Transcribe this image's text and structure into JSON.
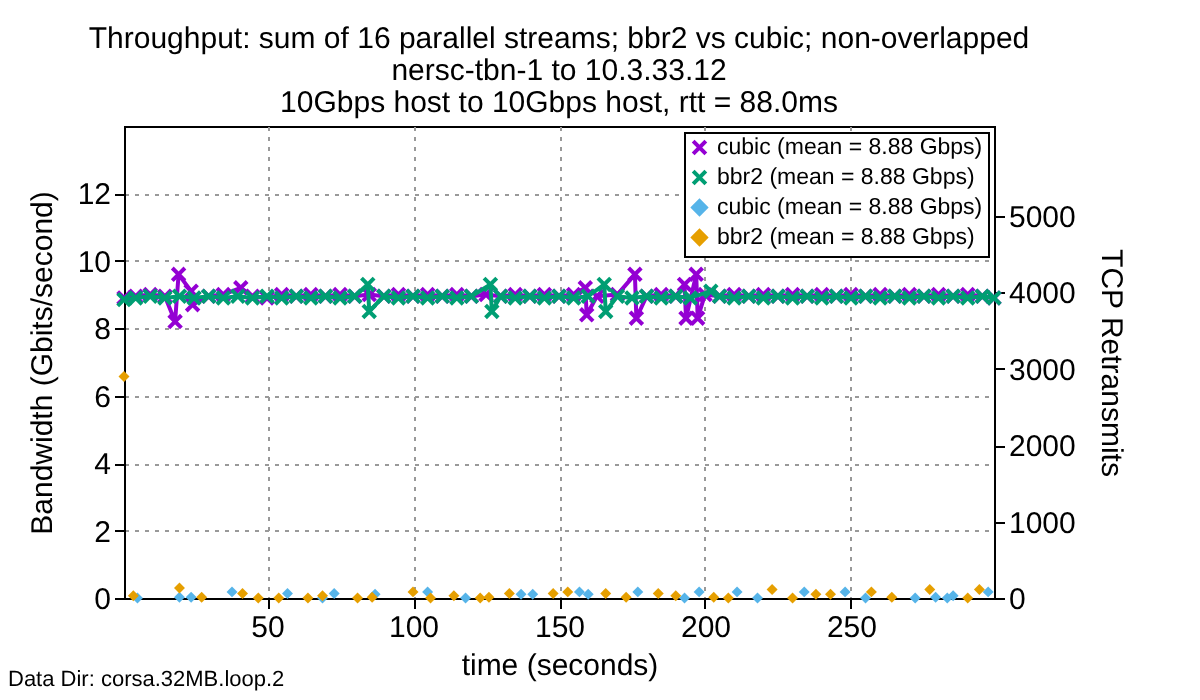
{
  "chart_data": {
    "type": "line",
    "title": "Throughput: sum of 16 parallel streams; bbr2 vs cubic; non-overlapped\nnersc-tbn-1 to 10.3.33.12\n10Gbps host to 10Gbps host, rtt = 88.0ms",
    "xlabel": "time (seconds)",
    "ylabel": "Bandwidth (Gbits/second)",
    "y2label": "TCP Retransmits",
    "annotations": [
      "Data Dir: corsa.32MB.loop.2"
    ],
    "xlim": [
      1,
      299
    ],
    "xticks": [
      50,
      100,
      150,
      200,
      250
    ],
    "ylim": [
      0,
      14
    ],
    "yticks": [
      0,
      2,
      4,
      6,
      8,
      10,
      12
    ],
    "y2lim": [
      0,
      6180
    ],
    "y2ticks": [
      0,
      1000,
      2000,
      3000,
      4000,
      5000
    ],
    "grid": true,
    "legend": "top right",
    "line_style": "solid",
    "series": [
      {
        "name": "cubic (mean = 8.88 Gbps)",
        "color": "#9400d3",
        "type": "line",
        "marker": "cross",
        "x": [
          1,
          5,
          10,
          15,
          18.5,
          19.7,
          24,
          24.5,
          30,
          35,
          41,
          45,
          50,
          55,
          60,
          65,
          70,
          75,
          80,
          85,
          90,
          95,
          100,
          105,
          110,
          115,
          120,
          125,
          130,
          135,
          140,
          145,
          150,
          155,
          159,
          159.5,
          163,
          170,
          176,
          176.5,
          180,
          185,
          190,
          193,
          193.5,
          197,
          197.5,
          200,
          205,
          210,
          215,
          220,
          225,
          230,
          235,
          240,
          245,
          250,
          255,
          260,
          265,
          270,
          275,
          280,
          285,
          290,
          295,
          299
        ],
        "values": [
          8.9,
          8.95,
          9.0,
          8.95,
          8.2,
          9.6,
          9.1,
          8.7,
          8.95,
          9.0,
          9.2,
          8.95,
          8.9,
          9.0,
          8.95,
          9.0,
          8.95,
          9.0,
          8.95,
          9.0,
          8.95,
          9.0,
          8.95,
          9.0,
          8.95,
          9.0,
          8.95,
          9.0,
          8.95,
          9.0,
          8.95,
          9.0,
          8.95,
          9.0,
          9.2,
          8.4,
          8.95,
          9.0,
          9.6,
          8.3,
          8.95,
          9.0,
          8.95,
          9.3,
          8.3,
          9.6,
          8.3,
          9.0,
          8.95,
          9.0,
          8.95,
          9.0,
          8.95,
          9.0,
          8.95,
          9.0,
          8.95,
          9.0,
          8.95,
          9.0,
          8.95,
          9.0,
          8.95,
          9.0,
          8.95,
          9.0,
          8.95,
          8.9
        ]
      },
      {
        "name": "bbr2 (mean = 8.88 Gbps)",
        "color": "#009e73",
        "type": "line",
        "marker": "cross",
        "x": [
          1,
          5,
          10,
          15,
          20,
          25,
          30,
          35,
          40,
          45,
          50,
          55,
          60,
          65,
          70,
          75,
          80,
          84.5,
          85,
          90,
          95,
          100,
          105,
          110,
          115,
          120,
          126.5,
          127,
          130,
          135,
          140,
          145,
          150,
          155,
          160,
          165.5,
          166,
          170,
          175,
          180,
          185,
          190,
          195,
          202,
          205,
          210,
          215,
          220,
          225,
          230,
          235,
          240,
          245,
          250,
          255,
          260,
          265,
          270,
          275,
          280,
          285,
          290,
          295,
          299
        ],
        "values": [
          8.85,
          8.9,
          8.95,
          8.9,
          8.95,
          8.9,
          8.95,
          8.9,
          8.95,
          8.9,
          8.95,
          8.9,
          8.95,
          8.9,
          8.95,
          8.9,
          8.95,
          9.3,
          8.5,
          8.95,
          8.9,
          8.95,
          8.9,
          8.95,
          8.9,
          8.95,
          9.3,
          8.5,
          8.95,
          8.9,
          8.95,
          8.9,
          8.95,
          8.9,
          8.95,
          9.3,
          8.5,
          8.95,
          8.9,
          8.95,
          8.9,
          8.95,
          8.9,
          9.1,
          8.95,
          8.9,
          8.95,
          8.9,
          8.95,
          8.9,
          8.95,
          8.9,
          8.95,
          8.9,
          8.95,
          8.9,
          8.95,
          8.9,
          8.95,
          8.9,
          8.95,
          8.9,
          8.95,
          8.9
        ]
      },
      {
        "name": "cubic (mean = 8.88 Gbps)",
        "color": "#56b4e9",
        "type": "scatter",
        "marker": "diamond",
        "axis": "y2",
        "x": [
          5.6,
          20,
          24,
          38,
          57,
          69,
          73,
          87,
          105,
          118,
          123,
          137,
          141,
          157,
          160,
          177,
          193,
          198,
          211,
          218,
          234,
          248,
          255,
          264,
          272,
          279,
          283,
          285,
          297
        ],
        "values": [
          0,
          10,
          10,
          80,
          60,
          0,
          60,
          50,
          80,
          0,
          null,
          50,
          50,
          80,
          50,
          80,
          0,
          80,
          80,
          0,
          80,
          80,
          0,
          null,
          0,
          10,
          0,
          30,
          80
        ]
      },
      {
        "name": "bbr2 (mean = 8.88 Gbps)",
        "color": "#e69f00",
        "type": "scatter",
        "marker": "diamond",
        "axis": "y2",
        "x": [
          1,
          4.2,
          20,
          27.6,
          41.6,
          47,
          54,
          64,
          69,
          81,
          86,
          100,
          106,
          114,
          123,
          126,
          133,
          148,
          153,
          166,
          173,
          184,
          190,
          203,
          208,
          223,
          230,
          238,
          243,
          257,
          264,
          277,
          290,
          294
        ],
        "values": [
          2900,
          30,
          130,
          10,
          60,
          0,
          0,
          0,
          30,
          0,
          10,
          80,
          0,
          30,
          0,
          10,
          60,
          60,
          80,
          60,
          10,
          60,
          30,
          10,
          0,
          110,
          0,
          50,
          50,
          80,
          10,
          110,
          0,
          110
        ]
      }
    ]
  }
}
